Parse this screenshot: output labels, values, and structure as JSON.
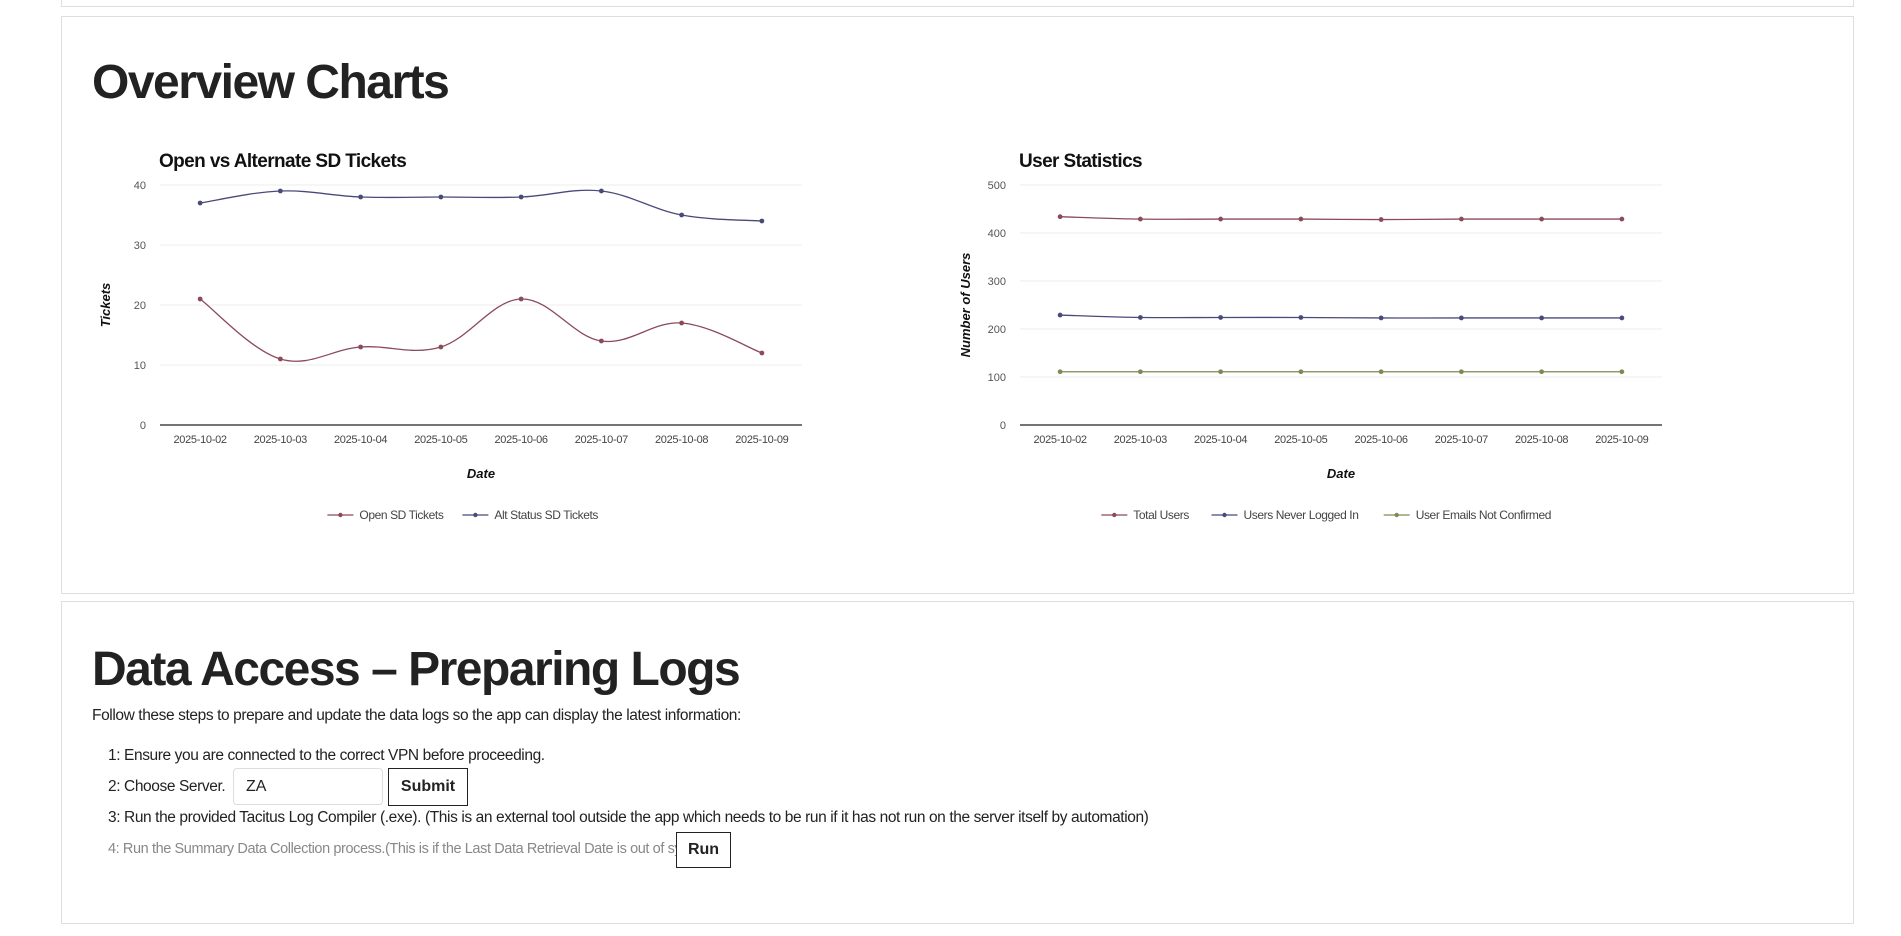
{
  "overview": {
    "heading": "Overview Charts"
  },
  "chart_data": [
    {
      "type": "line",
      "title": "Open vs Alternate SD Tickets",
      "xlabel": "Date",
      "ylabel": "Tickets",
      "x": [
        "2025-10-02",
        "2025-10-03",
        "2025-10-04",
        "2025-10-05",
        "2025-10-06",
        "2025-10-07",
        "2025-10-08",
        "2025-10-09"
      ],
      "ylim": [
        0,
        40
      ],
      "yticks": [
        "0",
        "10",
        "20",
        "30",
        "40"
      ],
      "grid": true,
      "legend": "bottom",
      "series": [
        {
          "name": "Open SD Tickets",
          "color": "#8b4a5a",
          "values": [
            21,
            11,
            13,
            13,
            21,
            14,
            17,
            12
          ]
        },
        {
          "name": "Alt Status SD Tickets",
          "color": "#4a4a7a",
          "values": [
            37,
            39,
            38,
            38,
            38,
            39,
            35,
            34
          ]
        }
      ]
    },
    {
      "type": "line",
      "title": "User Statistics",
      "xlabel": "Date",
      "ylabel": "Number of Users",
      "x": [
        "2025-10-02",
        "2025-10-03",
        "2025-10-04",
        "2025-10-05",
        "2025-10-06",
        "2025-10-07",
        "2025-10-08",
        "2025-10-09"
      ],
      "ylim": [
        0,
        500
      ],
      "yticks": [
        "0",
        "100",
        "200",
        "300",
        "400",
        "500"
      ],
      "grid": true,
      "legend": "bottom",
      "series": [
        {
          "name": "Total Users",
          "color": "#8b4a5a",
          "values": [
            434,
            429,
            429,
            429,
            428,
            429,
            429,
            429
          ]
        },
        {
          "name": "Users Never Logged In",
          "color": "#4a4a7a",
          "values": [
            229,
            224,
            224,
            224,
            223,
            223,
            223,
            223
          ]
        },
        {
          "name": "User Emails Not Confirmed",
          "color": "#7d8a55",
          "values": [
            111,
            111,
            111,
            111,
            111,
            111,
            111,
            111
          ]
        }
      ]
    }
  ],
  "data_access": {
    "heading": "Data Access – Preparing Logs",
    "intro": "Follow these steps to prepare and update the data logs so the app can display the latest information:",
    "step1": "1: Ensure you are connected to the correct VPN before proceeding.",
    "step2": "2: Choose Server.",
    "server_value": "ZA",
    "submit_label": "Submit",
    "step3": "3: Run the provided Tacitus Log Compiler (.exe). (This is an external tool outside the app which needs to be run if it has not run on the server itself by automation)",
    "step4": "4: Run the Summary Data Collection process.(This is if the Last Data Retrieval Date is out of sync",
    "run_label": "Run"
  }
}
